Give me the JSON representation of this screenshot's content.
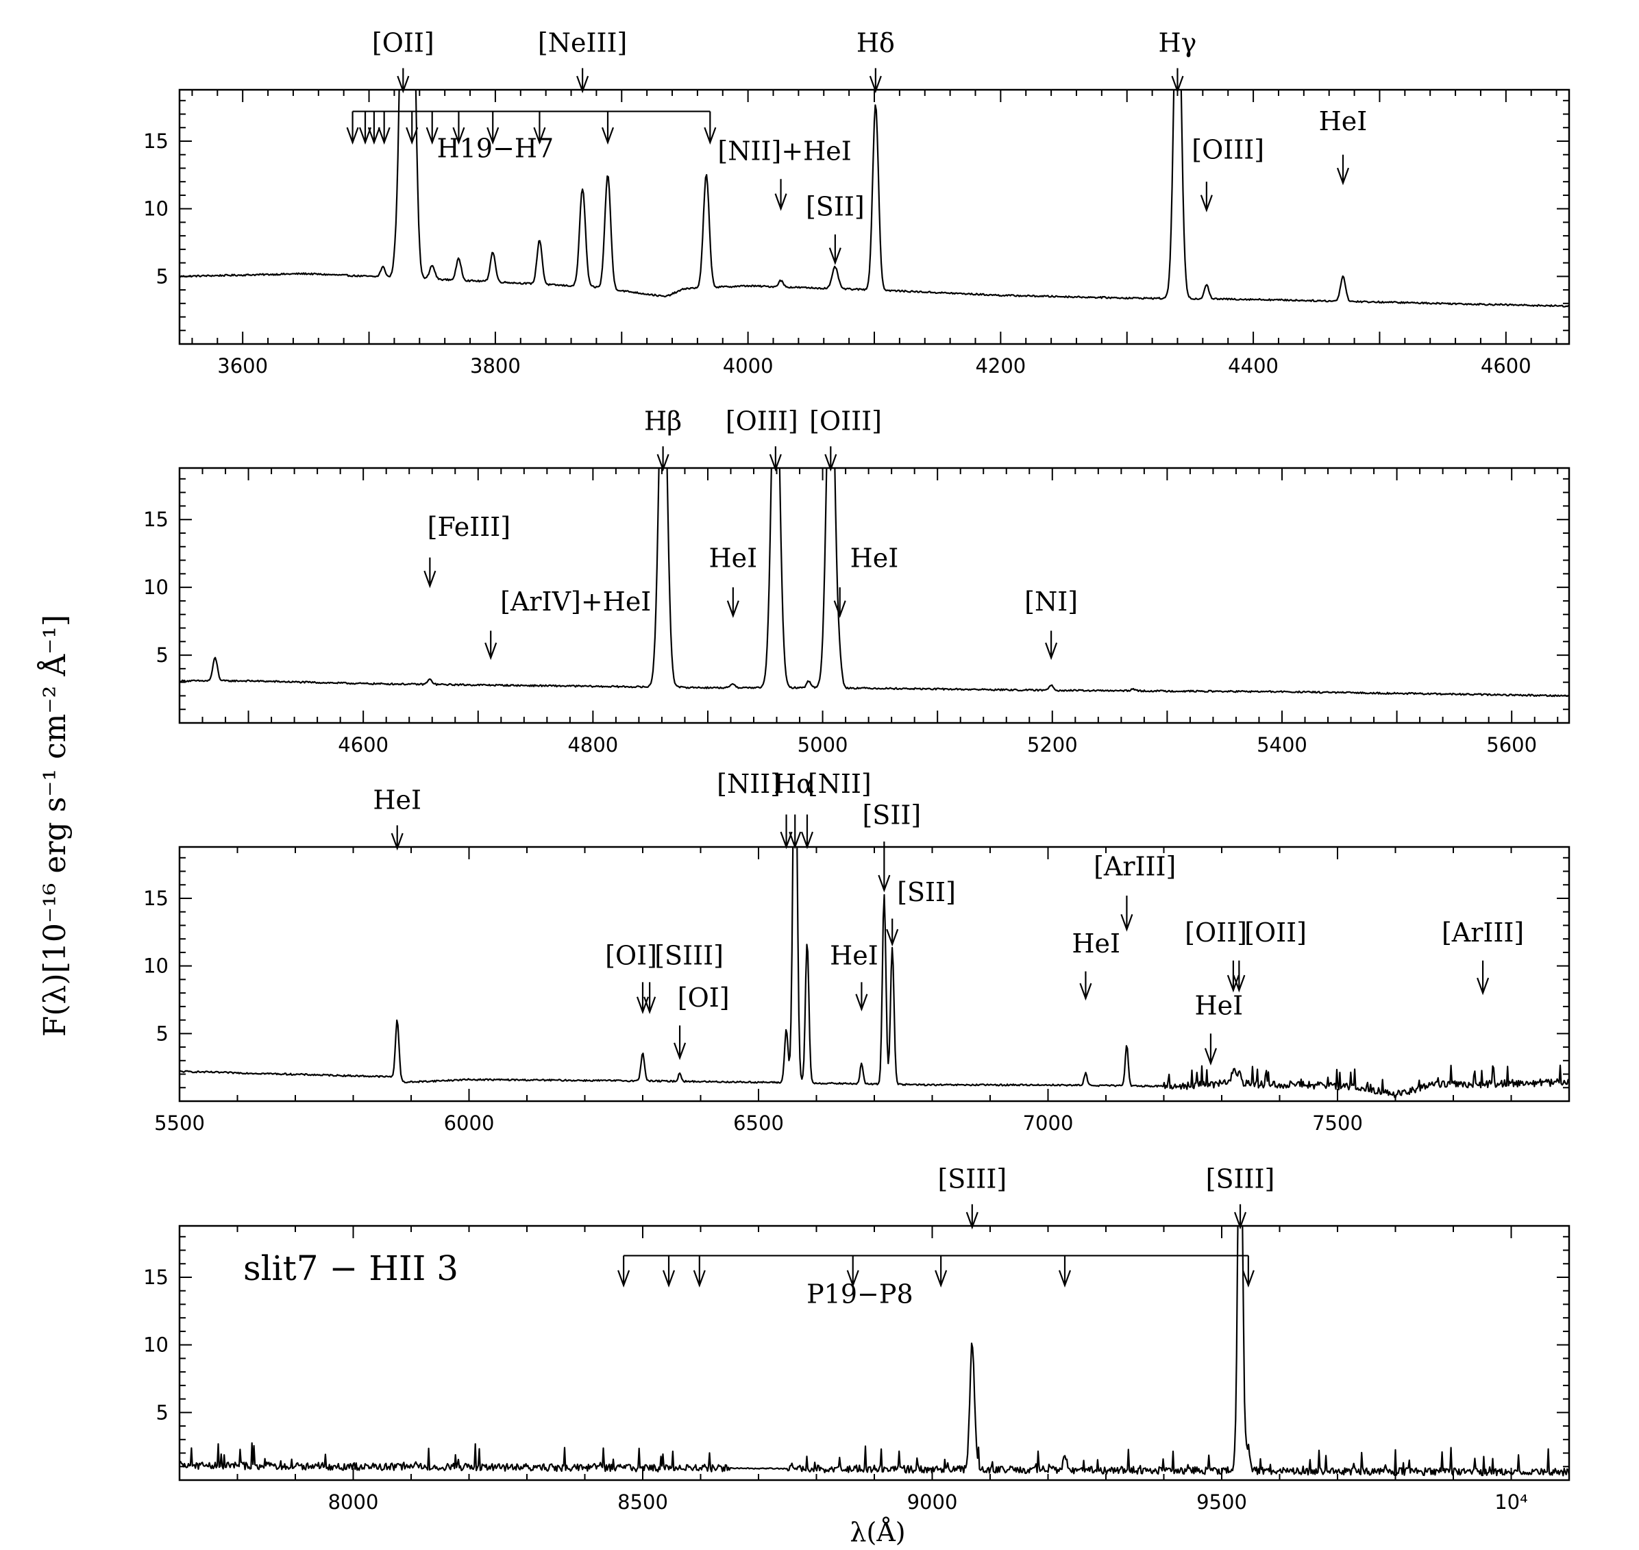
{
  "figure": {
    "ylabel": "F(λ)[10⁻¹⁶ erg s⁻¹ cm⁻² Å⁻¹]",
    "xlabel": "λ(Å)",
    "annotation": "slit7 − HII 3"
  },
  "chart_data": [
    {
      "type": "line",
      "panel": "panel-1",
      "xlim": [
        3550,
        4650
      ],
      "ylim": [
        0,
        18.8
      ],
      "xticks": [
        3600,
        3800,
        4000,
        4200,
        4400,
        4600
      ],
      "yticks": [
        5,
        10,
        15
      ],
      "continuum": [
        [
          3550,
          5.0
        ],
        [
          3650,
          5.2
        ],
        [
          3700,
          5.0
        ],
        [
          3800,
          4.6
        ],
        [
          3880,
          4.2
        ],
        [
          3935,
          3.5
        ],
        [
          3950,
          4.1
        ],
        [
          4000,
          4.3
        ],
        [
          4100,
          4.0
        ],
        [
          4200,
          3.6
        ],
        [
          4300,
          3.4
        ],
        [
          4400,
          3.3
        ],
        [
          4500,
          3.1
        ],
        [
          4650,
          2.8
        ]
      ],
      "lines": [
        {
          "x": 3711,
          "peak": 5.7,
          "width": 1.8
        },
        {
          "x": 3721,
          "peak": 5.8,
          "width": 1.8
        },
        {
          "x": 3727,
          "peak": 30,
          "width": 2.8
        },
        {
          "x": 3734,
          "peak": 30,
          "width": 2.8
        },
        {
          "x": 3750,
          "peak": 5.8,
          "width": 2
        },
        {
          "x": 3771,
          "peak": 6.3,
          "width": 2
        },
        {
          "x": 3798,
          "peak": 6.8,
          "width": 2
        },
        {
          "x": 3835,
          "peak": 7.7,
          "width": 2
        },
        {
          "x": 3869,
          "peak": 11.5,
          "width": 2.3
        },
        {
          "x": 3889,
          "peak": 12.5,
          "width": 2.3
        },
        {
          "x": 3967,
          "peak": 12.5,
          "width": 2.3
        },
        {
          "x": 4026,
          "peak": 4.7,
          "width": 1.8
        },
        {
          "x": 4069,
          "peak": 5.7,
          "width": 2.3
        },
        {
          "x": 4101,
          "peak": 17.7,
          "width": 2.3
        },
        {
          "x": 4340,
          "peak": 30,
          "width": 2.8
        },
        {
          "x": 4363,
          "peak": 4.4,
          "width": 1.8
        },
        {
          "x": 4471,
          "peak": 5.0,
          "width": 2
        }
      ],
      "markers": [
        {
          "label": "[OII]",
          "x": 3727,
          "label_x": 3727,
          "label_y": 21.6,
          "arrow_top": 20.4,
          "arrow_tip": 18.7
        },
        {
          "label": "[NeIII]",
          "x": 3869,
          "label_x": 3869,
          "label_y": 21.6,
          "arrow_top": 20.4,
          "arrow_tip": 18.7
        },
        {
          "label": "Hδ",
          "x": 4101,
          "label_x": 4101,
          "label_y": 21.6,
          "arrow_top": 20.4,
          "arrow_tip": 18.7
        },
        {
          "label": "Hγ",
          "x": 4340,
          "label_x": 4340,
          "label_y": 21.6,
          "arrow_top": 20.4,
          "arrow_tip": 18.7
        },
        {
          "label": "[NII]+HeI",
          "x": 4026,
          "label_x": 4029,
          "label_y": 13.6,
          "arrow_top": 12.2,
          "arrow_tip": 10.0
        },
        {
          "label": "[SII]",
          "x": 4069,
          "label_x": 4069,
          "label_y": 9.5,
          "arrow_top": 8.1,
          "arrow_tip": 6.0
        },
        {
          "label": "[OIII]",
          "x": 4363,
          "label_x": 4380,
          "label_y": 13.7,
          "arrow_top": 12.0,
          "arrow_tip": 9.9
        },
        {
          "label": "HeI",
          "x": 4471,
          "label_x": 4471,
          "label_y": 15.8,
          "arrow_top": 14.0,
          "arrow_tip": 11.9
        }
      ],
      "series_bracket": {
        "label": "H19−H7",
        "bar_y": 17.2,
        "tip_y": 14.9,
        "label_x": 3800,
        "label_y": 13.8,
        "x": [
          3687,
          3697,
          3704,
          3712,
          3734,
          3750,
          3771,
          3798,
          3835,
          3889,
          3970
        ]
      }
    },
    {
      "type": "line",
      "panel": "panel-2",
      "xlim": [
        4440,
        5650
      ],
      "ylim": [
        0,
        18.8
      ],
      "xticks": [
        4600,
        4800,
        5000,
        5200,
        5400,
        5600
      ],
      "yticks": [
        5,
        10,
        15
      ],
      "continuum": [
        [
          4440,
          3.1
        ],
        [
          4500,
          3.1
        ],
        [
          4600,
          2.9
        ],
        [
          4700,
          2.8
        ],
        [
          4800,
          2.7
        ],
        [
          4900,
          2.6
        ],
        [
          5000,
          2.6
        ],
        [
          5200,
          2.4
        ],
        [
          5400,
          2.3
        ],
        [
          5650,
          2.0
        ]
      ],
      "lines": [
        {
          "x": 4471,
          "peak": 4.8,
          "width": 2
        },
        {
          "x": 4658,
          "peak": 3.2,
          "width": 2
        },
        {
          "x": 4861,
          "peak": 30,
          "width": 3.5
        },
        {
          "x": 4922,
          "peak": 2.9,
          "width": 1.8
        },
        {
          "x": 4959,
          "peak": 30,
          "width": 3.5
        },
        {
          "x": 4988,
          "peak": 3.1,
          "width": 1.8
        },
        {
          "x": 5007,
          "peak": 30,
          "width": 3.5
        },
        {
          "x": 5015,
          "peak": 3.8,
          "width": 1.8
        },
        {
          "x": 5199,
          "peak": 2.8,
          "width": 2
        },
        {
          "x": 5270,
          "peak": 2.5,
          "width": 1.8
        }
      ],
      "markers": [
        {
          "label": "Hβ",
          "x": 4861,
          "label_x": 4861,
          "label_y": 21.6,
          "arrow_top": 20.4,
          "arrow_tip": 18.7
        },
        {
          "label": "[OIII]",
          "x": 4959,
          "label_x": 4947,
          "label_y": 21.6,
          "arrow_top": 20.4,
          "arrow_tip": 18.7
        },
        {
          "label": "[OIII]",
          "x": 5007,
          "label_x": 5020,
          "label_y": 21.6,
          "arrow_top": 20.4,
          "arrow_tip": 18.7
        },
        {
          "label": "[FeIII]",
          "x": 4658,
          "label_x": 4692,
          "label_y": 13.8,
          "arrow_top": 12.2,
          "arrow_tip": 10.1
        },
        {
          "label": "[ArIV]+HeI",
          "x": 4711,
          "label_x": 4785,
          "label_y": 8.3,
          "arrow_top": 6.8,
          "arrow_tip": 4.8
        },
        {
          "label": "HeI",
          "x": 4922,
          "label_x": 4922,
          "label_y": 11.5,
          "arrow_top": 10.0,
          "arrow_tip": 7.9
        },
        {
          "label": "HeI",
          "x": 5015,
          "label_x": 5045,
          "label_y": 11.5,
          "arrow_top": 10.0,
          "arrow_tip": 7.9
        },
        {
          "label": "[NI]",
          "x": 5199,
          "label_x": 5199,
          "label_y": 8.3,
          "arrow_top": 6.8,
          "arrow_tip": 4.8
        }
      ]
    },
    {
      "type": "line",
      "panel": "panel-3",
      "xlim": [
        5500,
        7900
      ],
      "ylim": [
        0,
        18.8
      ],
      "xticks": [
        5500,
        6000,
        6500,
        7000,
        7500
      ],
      "yticks": [
        5,
        10,
        15
      ],
      "continuum": [
        [
          5500,
          2.2
        ],
        [
          5870,
          1.8
        ],
        [
          5890,
          1.4
        ],
        [
          6000,
          1.6
        ],
        [
          6300,
          1.5
        ],
        [
          6500,
          1.4
        ],
        [
          6800,
          1.2
        ],
        [
          7000,
          1.2
        ],
        [
          7220,
          1.1
        ],
        [
          7300,
          1.3
        ],
        [
          7450,
          1.2
        ],
        [
          7540,
          1.0
        ],
        [
          7600,
          0.5
        ],
        [
          7660,
          1.2
        ],
        [
          7900,
          1.4
        ]
      ],
      "noisy_from": 7200,
      "lines": [
        {
          "x": 5876,
          "peak": 6.0,
          "width": 3
        },
        {
          "x": 6300,
          "peak": 3.6,
          "width": 3
        },
        {
          "x": 6364,
          "peak": 2.1,
          "width": 2.5
        },
        {
          "x": 6548,
          "peak": 5.3,
          "width": 3
        },
        {
          "x": 6563,
          "peak": 30,
          "width": 3.6
        },
        {
          "x": 6584,
          "peak": 11.8,
          "width": 3
        },
        {
          "x": 6678,
          "peak": 2.8,
          "width": 2.6
        },
        {
          "x": 6717,
          "peak": 15.3,
          "width": 3
        },
        {
          "x": 6731,
          "peak": 11.4,
          "width": 3
        },
        {
          "x": 7065,
          "peak": 2.1,
          "width": 2.6
        },
        {
          "x": 7136,
          "peak": 4.2,
          "width": 2.6
        },
        {
          "x": 7320,
          "peak": 2.4,
          "width": 3
        },
        {
          "x": 7330,
          "peak": 2.2,
          "width": 3
        }
      ],
      "markers": [
        {
          "label": "HeI",
          "x": 5876,
          "label_x": 5876,
          "label_y": 21.6,
          "arrow_top": 20.4,
          "arrow_tip": 18.7
        },
        {
          "label": "[NII]",
          "x": 6548,
          "label_x": 6483,
          "label_y": 22.8,
          "arrow_top": 21.2,
          "arrow_tip": 18.8
        },
        {
          "label": "Hα",
          "x": 6563,
          "label_x": 6561,
          "label_y": 22.8,
          "arrow_top": 21.2,
          "arrow_tip": 18.8
        },
        {
          "label": "[NII]",
          "x": 6584,
          "label_x": 6640,
          "label_y": 22.8,
          "arrow_top": 21.2,
          "arrow_tip": 18.8
        },
        {
          "label": "[SII]",
          "x": 6717,
          "label_x": 6730,
          "label_y": 20.5,
          "arrow_top": 19.2,
          "arrow_tip": 15.6
        },
        {
          "label": "[SII]",
          "x": 6731,
          "label_x": 6790,
          "label_y": 14.8,
          "arrow_top": 13.5,
          "arrow_tip": 11.6
        },
        {
          "label": "[OI]",
          "x": 6300,
          "label_x": 6280,
          "label_y": 10.1,
          "arrow_top": 8.8,
          "arrow_tip": 6.6
        },
        {
          "label": "[SIII]",
          "x": 6312,
          "label_x": 6380,
          "label_y": 10.1,
          "arrow_top": 8.8,
          "arrow_tip": 6.6
        },
        {
          "label": "[OI]",
          "x": 6364,
          "label_x": 6405,
          "label_y": 7.0,
          "arrow_top": 5.6,
          "arrow_tip": 3.2
        },
        {
          "label": "HeI",
          "x": 6678,
          "label_x": 6665,
          "label_y": 10.1,
          "arrow_top": 8.8,
          "arrow_tip": 6.8
        },
        {
          "label": "HeI",
          "x": 7065,
          "label_x": 7083,
          "label_y": 11.0,
          "arrow_top": 9.6,
          "arrow_tip": 7.6
        },
        {
          "label": "[ArIII]",
          "x": 7136,
          "label_x": 7150,
          "label_y": 16.7,
          "arrow_top": 15.2,
          "arrow_tip": 12.7
        },
        {
          "label": "[OII]",
          "x": 7320,
          "label_x": 7290,
          "label_y": 11.8,
          "arrow_top": 10.4,
          "arrow_tip": 8.2
        },
        {
          "label": "[OII]",
          "x": 7330,
          "label_x": 7393,
          "label_y": 11.8,
          "arrow_top": 10.4,
          "arrow_tip": 8.2
        },
        {
          "label": "HeI",
          "x": 7281,
          "label_x": 7295,
          "label_y": 6.4,
          "arrow_top": 5.0,
          "arrow_tip": 2.8
        },
        {
          "label": "[ArIII]",
          "x": 7751,
          "label_x": 7751,
          "label_y": 11.8,
          "arrow_top": 10.4,
          "arrow_tip": 8.0
        }
      ]
    },
    {
      "type": "line",
      "panel": "panel-4",
      "xlim": [
        7700,
        10100
      ],
      "ylim": [
        0,
        18.8
      ],
      "xticks": [
        8000,
        8500,
        9000,
        9500,
        10000
      ],
      "xtick_labels": [
        "8000",
        "8500",
        "9000",
        "9500",
        "10⁴"
      ],
      "yticks": [
        5,
        10,
        15
      ],
      "continuum": [
        [
          7700,
          1.1
        ],
        [
          8000,
          1.0
        ],
        [
          8500,
          0.9
        ],
        [
          9000,
          0.8
        ],
        [
          9500,
          0.7
        ],
        [
          10000,
          0.6
        ]
      ],
      "noisy_from": 7700,
      "noise_gap": [
        8650,
        8750
      ],
      "lines": [
        {
          "x": 9069,
          "peak": 10.2,
          "width": 4
        },
        {
          "x": 9229,
          "peak": 2.0,
          "width": 3
        },
        {
          "x": 9532,
          "peak": 30,
          "width": 4
        },
        {
          "x": 9546,
          "peak": 2.4,
          "width": 3
        }
      ],
      "markers": [
        {
          "label": "[SIII]",
          "x": 9069,
          "label_x": 9069,
          "label_y": 21.6,
          "arrow_top": 20.4,
          "arrow_tip": 18.7
        },
        {
          "label": "[SIII]",
          "x": 9532,
          "label_x": 9532,
          "label_y": 21.6,
          "arrow_top": 20.4,
          "arrow_tip": 18.7
        }
      ],
      "series_bracket": {
        "label": "P19−P8",
        "bar_y": 16.6,
        "tip_y": 14.4,
        "label_x": 8875,
        "label_y": 13.1,
        "x": [
          8467,
          8545,
          8598,
          8863,
          9015,
          9229,
          9546
        ]
      }
    }
  ]
}
